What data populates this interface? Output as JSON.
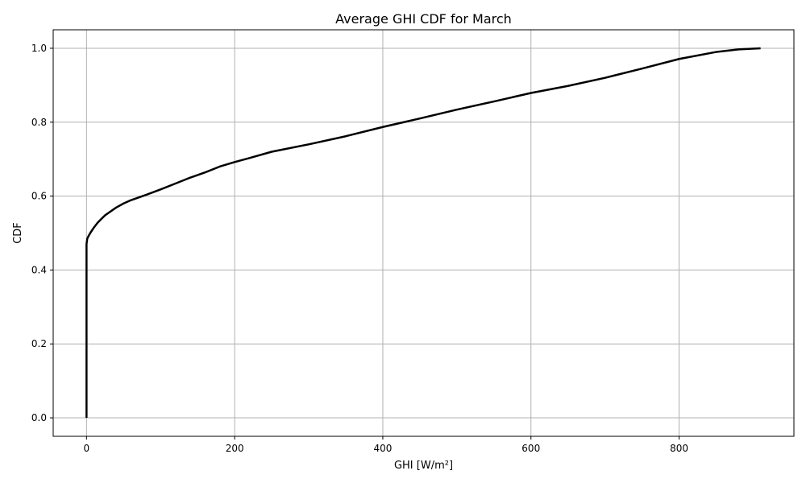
{
  "chart_data": {
    "type": "line",
    "title": "Average GHI CDF for March",
    "xlabel": "GHI [W/m²]",
    "ylabel": "CDF",
    "xlim": [
      -45,
      955
    ],
    "ylim": [
      -0.05,
      1.05
    ],
    "xticks": [
      0,
      200,
      400,
      600,
      800
    ],
    "xtick_labels": [
      "0",
      "200",
      "400",
      "600",
      "800"
    ],
    "yticks": [
      0.0,
      0.2,
      0.4,
      0.6,
      0.8,
      1.0
    ],
    "ytick_labels": [
      "0.0",
      "0.2",
      "0.4",
      "0.6",
      "0.8",
      "1.0"
    ],
    "grid": true,
    "colors": {
      "line": "#000000",
      "grid": "#b0b0b0",
      "axes": "#000000"
    },
    "series": [
      {
        "x": [
          0,
          0,
          0,
          1,
          3,
          5,
          10,
          15,
          20,
          25,
          30,
          40,
          50,
          60,
          70,
          80,
          100,
          120,
          140,
          160,
          180,
          200,
          220,
          250,
          300,
          350,
          400,
          450,
          500,
          550,
          600,
          650,
          700,
          750,
          800,
          850,
          880,
          910
        ],
        "y": [
          0.0,
          0.3,
          0.47,
          0.485,
          0.493,
          0.5,
          0.515,
          0.528,
          0.538,
          0.548,
          0.555,
          0.569,
          0.58,
          0.589,
          0.596,
          0.603,
          0.618,
          0.634,
          0.65,
          0.664,
          0.68,
          0.692,
          0.703,
          0.72,
          0.74,
          0.762,
          0.787,
          0.81,
          0.834,
          0.856,
          0.879,
          0.898,
          0.92,
          0.945,
          0.971,
          0.99,
          0.997,
          1.0
        ]
      }
    ]
  }
}
